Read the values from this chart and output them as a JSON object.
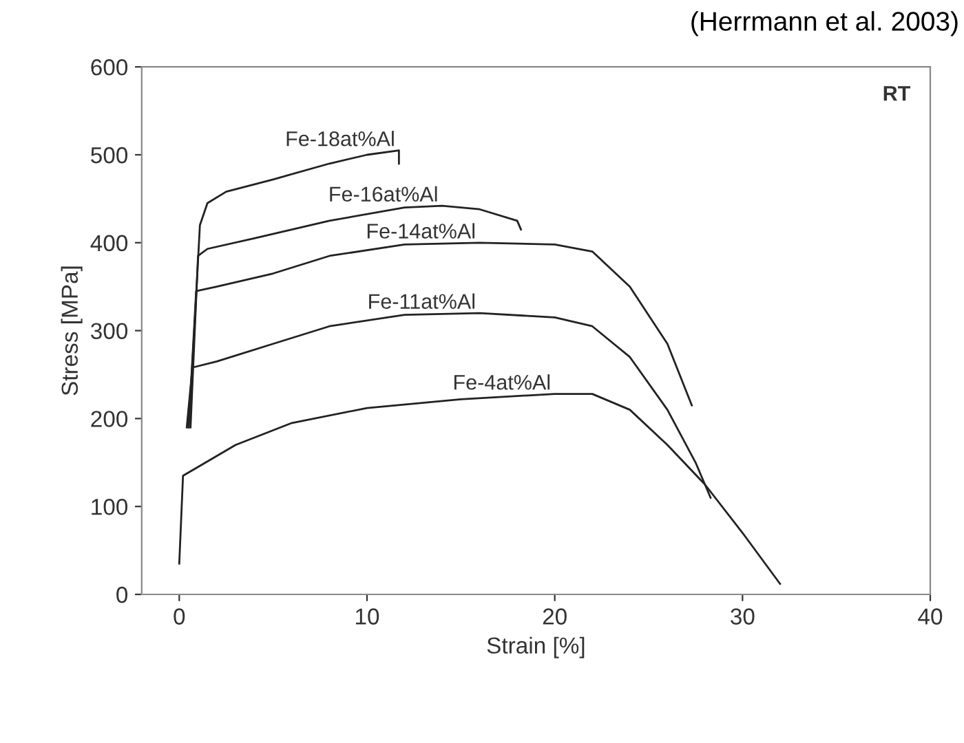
{
  "chart_data": {
    "type": "line",
    "xlabel": "Strain [%]",
    "ylabel": "Stress [MPa]",
    "xlim": [
      -2,
      40
    ],
    "ylim": [
      0,
      600
    ],
    "xticks": [
      0,
      10,
      20,
      30,
      40
    ],
    "yticks": [
      0,
      100,
      200,
      300,
      400,
      500,
      600
    ],
    "grid": false,
    "legend": false,
    "marker": "none",
    "line_style": "solid",
    "annotations": [
      "(Herrmann et al. 2003)",
      "RT"
    ],
    "series": [
      {
        "name": "Fe-18at%Al",
        "color": "#222222",
        "x": [
          0.5,
          0.8,
          1.1,
          1.5,
          2.5,
          5,
          8,
          10,
          11.7,
          11.7
        ],
        "values": [
          190,
          300,
          420,
          445,
          458,
          472,
          490,
          500,
          505,
          490
        ]
      },
      {
        "name": "Fe-16at%Al",
        "color": "#222222",
        "x": [
          0.6,
          1,
          1.5,
          4,
          8,
          12,
          14,
          16,
          18,
          18.2
        ],
        "values": [
          190,
          385,
          393,
          405,
          425,
          440,
          442,
          438,
          425,
          415
        ]
      },
      {
        "name": "Fe-14at%Al",
        "color": "#222222",
        "x": [
          0.5,
          0.9,
          2,
          5,
          8,
          12,
          16,
          20,
          22,
          24,
          26,
          27.3
        ],
        "values": [
          190,
          345,
          350,
          365,
          385,
          398,
          400,
          398,
          390,
          350,
          285,
          215
        ]
      },
      {
        "name": "Fe-11at%Al",
        "color": "#222222",
        "x": [
          0.4,
          0.7,
          2,
          5,
          8,
          12,
          16,
          20,
          22,
          24,
          26,
          27.5,
          28.3
        ],
        "values": [
          190,
          258,
          265,
          285,
          305,
          318,
          320,
          315,
          305,
          270,
          210,
          150,
          110
        ]
      },
      {
        "name": "Fe-4at%Al",
        "color": "#222222",
        "x": [
          0,
          0.2,
          1,
          3,
          6,
          10,
          15,
          20,
          22,
          24,
          26,
          28,
          30,
          32
        ],
        "values": [
          35,
          135,
          145,
          170,
          195,
          212,
          222,
          228,
          228,
          210,
          170,
          125,
          70,
          12
        ]
      }
    ]
  }
}
